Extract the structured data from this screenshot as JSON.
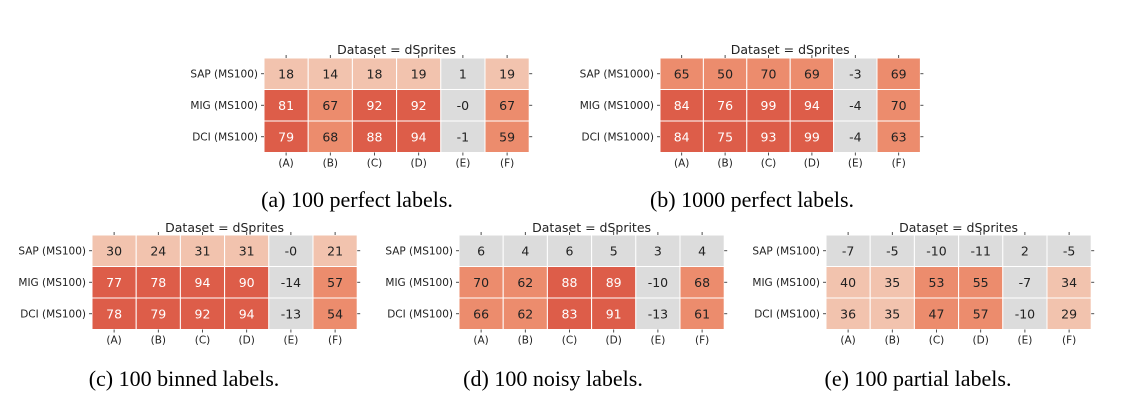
{
  "colors": {
    "neutral": "#dcdcdc",
    "light": "#f2c3ae",
    "medium": "#ec8c6d",
    "strong": "#dd5d49",
    "text_dark": "#222222",
    "text_light": "#ffffff"
  },
  "chart_data": [
    {
      "type": "heatmap",
      "title": "Dataset = dSprites",
      "caption": "(a) 100 perfect labels.",
      "rows": [
        "SAP (MS100)",
        "MIG (MS100)",
        "DCI (MS100)"
      ],
      "columns": [
        "(A)",
        "(B)",
        "(C)",
        "(D)",
        "(E)",
        "(F)"
      ],
      "values": [
        [
          18,
          14,
          18,
          19,
          1,
          19
        ],
        [
          81,
          67,
          92,
          92,
          "-0",
          67
        ],
        [
          79,
          68,
          88,
          94,
          -1,
          59
        ]
      ]
    },
    {
      "type": "heatmap",
      "title": "Dataset = dSprites",
      "caption": "(b) 1000 perfect labels.",
      "rows": [
        "SAP (MS1000)",
        "MIG (MS1000)",
        "DCI (MS1000)"
      ],
      "columns": [
        "(A)",
        "(B)",
        "(C)",
        "(D)",
        "(E)",
        "(F)"
      ],
      "values": [
        [
          65,
          50,
          70,
          69,
          -3,
          69
        ],
        [
          84,
          76,
          99,
          94,
          -4,
          70
        ],
        [
          84,
          75,
          93,
          99,
          -4,
          63
        ]
      ]
    },
    {
      "type": "heatmap",
      "title": "Dataset = dSprites",
      "caption": "(c) 100 binned labels.",
      "rows": [
        "SAP (MS100)",
        "MIG (MS100)",
        "DCI (MS100)"
      ],
      "columns": [
        "(A)",
        "(B)",
        "(C)",
        "(D)",
        "(E)",
        "(F)"
      ],
      "values": [
        [
          30,
          24,
          31,
          31,
          "-0",
          21
        ],
        [
          77,
          78,
          94,
          90,
          -14,
          57
        ],
        [
          78,
          79,
          92,
          94,
          -13,
          54
        ]
      ]
    },
    {
      "type": "heatmap",
      "title": "Dataset = dSprites",
      "caption": "(d) 100 noisy labels.",
      "rows": [
        "SAP (MS100)",
        "MIG (MS100)",
        "DCI (MS100)"
      ],
      "columns": [
        "(A)",
        "(B)",
        "(C)",
        "(D)",
        "(E)",
        "(F)"
      ],
      "values": [
        [
          6,
          4,
          6,
          5,
          3,
          4
        ],
        [
          70,
          62,
          88,
          89,
          -10,
          68
        ],
        [
          66,
          62,
          83,
          91,
          -13,
          61
        ]
      ]
    },
    {
      "type": "heatmap",
      "title": "Dataset = dSprites",
      "caption": "(e) 100 partial labels.",
      "rows": [
        "SAP (MS100)",
        "MIG (MS100)",
        "DCI (MS100)"
      ],
      "columns": [
        "(A)",
        "(B)",
        "(C)",
        "(D)",
        "(E)",
        "(F)"
      ],
      "values": [
        [
          -7,
          -5,
          -10,
          -11,
          2,
          -5
        ],
        [
          40,
          35,
          53,
          55,
          -7,
          34
        ],
        [
          36,
          35,
          47,
          57,
          -10,
          29
        ]
      ]
    }
  ]
}
